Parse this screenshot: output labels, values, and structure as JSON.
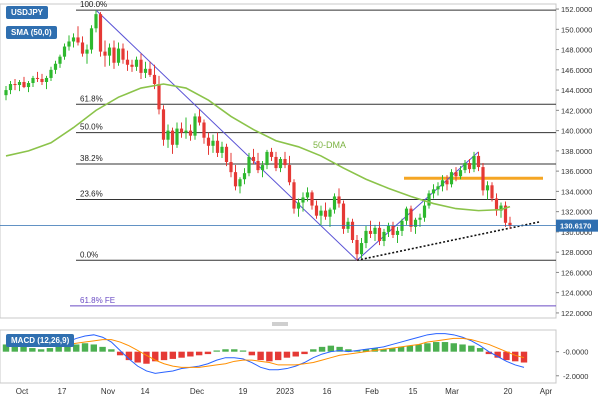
{
  "chart_data": {
    "type": "candlestick",
    "symbol": "USDJPY",
    "indicator_label": "SMA (50,0)",
    "macd_label": "MACD (12,26,9)",
    "current_price": 130.617,
    "current_price_label": "130.6170",
    "ylim": [
      121.5,
      152.5
    ],
    "y_ticks": [
      122,
      124,
      126,
      128,
      130,
      132,
      134,
      136,
      138,
      140,
      142,
      144,
      146,
      148,
      150,
      152
    ],
    "y_tick_labels": [
      "122.0000",
      "124.0000",
      "126.0000",
      "128.0000",
      "130.0000",
      "132.0000",
      "134.0000",
      "136.0000",
      "138.0000",
      "140.0000",
      "142.0000",
      "144.0000",
      "146.0000",
      "148.0000",
      "150.0000",
      "152.0000"
    ],
    "x_ticks": [
      "Oct",
      "17",
      "Nov",
      "14",
      "Dec",
      "19",
      "2023",
      "16",
      "Feb",
      "15",
      "Mar",
      "20",
      "Apr"
    ],
    "fib_levels": [
      {
        "label": "100.0%",
        "value": 151.9
      },
      {
        "label": "61.8%",
        "value": 142.6
      },
      {
        "label": "50.0%",
        "value": 139.8
      },
      {
        "label": "38.2%",
        "value": 136.7
      },
      {
        "label": "23.6%",
        "value": 133.2
      },
      {
        "label": "0.0%",
        "value": 127.2
      },
      {
        "label": "61.8% FE",
        "value": 122.7
      }
    ],
    "sma_label": "50-DMA",
    "resistance_level": 135.3,
    "macd_ticks": [
      "-0.0000",
      "-2.0000"
    ],
    "candles": [
      [
        143.5,
        144.4,
        143.0,
        144.0
      ],
      [
        144.0,
        144.9,
        143.6,
        144.6
      ],
      [
        144.6,
        145.1,
        144.0,
        144.5
      ],
      [
        144.5,
        145.0,
        143.9,
        144.8
      ],
      [
        144.8,
        145.3,
        144.2,
        144.3
      ],
      [
        144.3,
        144.9,
        143.8,
        144.7
      ],
      [
        144.7,
        145.4,
        144.3,
        145.2
      ],
      [
        145.2,
        145.8,
        144.8,
        145.1
      ],
      [
        145.1,
        145.6,
        144.5,
        144.8
      ],
      [
        144.8,
        145.4,
        144.1,
        145.2
      ],
      [
        145.2,
        146.3,
        144.9,
        146.0
      ],
      [
        146.0,
        146.9,
        145.6,
        146.6
      ],
      [
        146.6,
        147.5,
        146.2,
        147.3
      ],
      [
        147.3,
        148.6,
        147.0,
        148.3
      ],
      [
        148.3,
        149.4,
        147.9,
        148.8
      ],
      [
        148.8,
        149.6,
        148.2,
        149.2
      ],
      [
        149.2,
        150.3,
        148.4,
        148.7
      ],
      [
        148.7,
        149.3,
        147.3,
        147.6
      ],
      [
        147.6,
        148.5,
        146.6,
        148.0
      ],
      [
        148.0,
        150.4,
        147.6,
        150.1
      ],
      [
        150.1,
        151.9,
        149.7,
        151.5
      ],
      [
        151.5,
        151.7,
        147.3,
        147.8
      ],
      [
        147.8,
        148.9,
        146.3,
        147.4
      ],
      [
        147.4,
        148.6,
        146.4,
        148.2
      ],
      [
        148.2,
        148.9,
        146.1,
        146.7
      ],
      [
        146.7,
        148.7,
        146.4,
        148.1
      ],
      [
        148.1,
        148.6,
        146.6,
        147.0
      ],
      [
        147.0,
        147.9,
        145.9,
        146.5
      ],
      [
        146.5,
        147.0,
        145.8,
        146.3
      ],
      [
        146.3,
        147.3,
        145.9,
        147.0
      ],
      [
        147.0,
        147.6,
        145.1,
        145.7
      ],
      [
        145.7,
        146.8,
        145.2,
        146.1
      ],
      [
        146.1,
        146.8,
        145.3,
        145.5
      ],
      [
        145.5,
        146.5,
        144.1,
        144.6
      ],
      [
        144.6,
        145.4,
        141.6,
        142.1
      ],
      [
        142.1,
        142.5,
        138.5,
        139.1
      ],
      [
        139.1,
        140.6,
        138.3,
        140.0
      ],
      [
        140.0,
        140.3,
        137.7,
        138.6
      ],
      [
        138.6,
        140.8,
        138.3,
        140.2
      ],
      [
        140.2,
        140.8,
        139.3,
        139.8
      ],
      [
        139.8,
        141.3,
        139.2,
        140.0
      ],
      [
        140.0,
        140.6,
        139.0,
        139.5
      ],
      [
        139.5,
        141.7,
        139.1,
        141.4
      ],
      [
        141.4,
        142.1,
        140.5,
        140.8
      ],
      [
        140.8,
        141.1,
        138.7,
        139.3
      ],
      [
        139.3,
        139.8,
        137.6,
        138.5
      ],
      [
        138.5,
        139.6,
        137.8,
        139.0
      ],
      [
        139.0,
        139.8,
        137.4,
        137.8
      ],
      [
        137.8,
        138.9,
        137.3,
        138.4
      ],
      [
        138.4,
        138.7,
        136.5,
        136.9
      ],
      [
        136.9,
        137.8,
        135.4,
        135.9
      ],
      [
        135.9,
        136.6,
        134.1,
        134.5
      ],
      [
        134.5,
        135.4,
        133.8,
        135.2
      ],
      [
        135.2,
        136.3,
        134.7,
        135.8
      ],
      [
        135.8,
        137.8,
        135.5,
        137.4
      ],
      [
        137.4,
        138.2,
        136.7,
        137.0
      ],
      [
        137.0,
        137.8,
        135.8,
        136.1
      ],
      [
        136.1,
        137.0,
        135.4,
        136.6
      ],
      [
        136.6,
        138.1,
        136.2,
        137.9
      ],
      [
        137.9,
        138.3,
        137.0,
        137.4
      ],
      [
        137.4,
        137.9,
        136.0,
        136.3
      ],
      [
        136.3,
        137.4,
        135.9,
        137.2
      ],
      [
        137.2,
        137.9,
        136.3,
        136.6
      ],
      [
        136.6,
        137.5,
        134.6,
        134.9
      ],
      [
        134.9,
        135.2,
        131.8,
        132.3
      ],
      [
        132.3,
        133.3,
        131.5,
        132.9
      ],
      [
        132.9,
        133.9,
        132.0,
        133.4
      ],
      [
        133.4,
        134.4,
        133.0,
        133.9
      ],
      [
        133.9,
        134.1,
        132.2,
        132.6
      ],
      [
        132.6,
        133.1,
        131.3,
        131.6
      ],
      [
        131.6,
        132.6,
        130.7,
        132.1
      ],
      [
        132.1,
        132.9,
        131.2,
        131.5
      ],
      [
        131.5,
        132.4,
        130.5,
        132.2
      ],
      [
        132.2,
        133.8,
        131.8,
        133.5
      ],
      [
        133.5,
        134.3,
        132.4,
        132.8
      ],
      [
        132.8,
        133.1,
        129.8,
        130.3
      ],
      [
        130.3,
        131.4,
        129.9,
        131.0
      ],
      [
        131.0,
        131.3,
        128.9,
        129.2
      ],
      [
        129.2,
        129.7,
        127.2,
        127.8
      ],
      [
        127.8,
        129.4,
        127.4,
        128.9
      ],
      [
        128.9,
        130.6,
        128.4,
        130.1
      ],
      [
        130.1,
        131.1,
        129.4,
        129.8
      ],
      [
        129.8,
        130.7,
        129.1,
        130.4
      ],
      [
        130.4,
        131.0,
        128.7,
        129.1
      ],
      [
        129.1,
        130.3,
        128.6,
        130.0
      ],
      [
        130.0,
        130.9,
        129.5,
        130.6
      ],
      [
        130.6,
        131.0,
        129.4,
        129.7
      ],
      [
        129.7,
        130.5,
        128.9,
        130.1
      ],
      [
        130.1,
        131.3,
        129.6,
        131.1
      ],
      [
        131.1,
        132.5,
        130.7,
        132.3
      ],
      [
        132.3,
        132.6,
        130.0,
        130.5
      ],
      [
        130.5,
        131.4,
        129.8,
        131.2
      ],
      [
        131.2,
        131.8,
        130.5,
        131.4
      ],
      [
        131.4,
        133.0,
        131.0,
        132.6
      ],
      [
        132.6,
        134.1,
        132.3,
        133.8
      ],
      [
        133.8,
        134.7,
        133.3,
        134.2
      ],
      [
        134.2,
        134.9,
        133.6,
        134.5
      ],
      [
        134.5,
        135.6,
        134.0,
        135.1
      ],
      [
        135.1,
        135.6,
        134.1,
        134.7
      ],
      [
        134.7,
        136.2,
        134.4,
        135.9
      ],
      [
        135.9,
        136.4,
        135.0,
        135.5
      ],
      [
        135.5,
        136.5,
        135.2,
        136.1
      ],
      [
        136.1,
        137.1,
        135.8,
        136.8
      ],
      [
        136.8,
        137.2,
        135.8,
        136.2
      ],
      [
        136.2,
        137.9,
        135.9,
        137.5
      ],
      [
        137.5,
        137.9,
        136.0,
        136.4
      ],
      [
        136.4,
        136.8,
        133.6,
        134.1
      ],
      [
        134.1,
        135.0,
        133.2,
        134.6
      ],
      [
        134.6,
        134.9,
        133.0,
        133.3
      ],
      [
        133.3,
        133.8,
        131.6,
        132.1
      ],
      [
        132.1,
        132.9,
        131.4,
        132.6
      ],
      [
        132.6,
        133.0,
        130.5,
        130.9
      ],
      [
        130.9,
        131.5,
        130.3,
        130.6
      ]
    ],
    "sma_50": [
      [
        0,
        137.5
      ],
      [
        5,
        138.0
      ],
      [
        10,
        138.8
      ],
      [
        15,
        140.3
      ],
      [
        20,
        142.0
      ],
      [
        25,
        143.3
      ],
      [
        30,
        144.2
      ],
      [
        35,
        144.6
      ],
      [
        40,
        144.2
      ],
      [
        45,
        143.0
      ],
      [
        50,
        141.4
      ],
      [
        55,
        140.1
      ],
      [
        60,
        139.0
      ],
      [
        65,
        138.4
      ],
      [
        70,
        137.5
      ],
      [
        75,
        136.3
      ],
      [
        80,
        135.2
      ],
      [
        85,
        134.3
      ],
      [
        90,
        133.5
      ],
      [
        95,
        132.8
      ],
      [
        100,
        132.3
      ],
      [
        105,
        132.1
      ],
      [
        110,
        132.2
      ],
      [
        112,
        132.5
      ]
    ],
    "macd_hist": [
      0.6,
      0.7,
      0.5,
      0.3,
      0.2,
      0.3,
      0.5,
      0.4,
      0.6,
      0.7,
      0.6,
      0.4,
      0.2,
      -0.3,
      -0.7,
      -0.9,
      -1.0,
      -0.8,
      -0.7,
      -0.6,
      -0.5,
      -0.4,
      -0.3,
      -0.2,
      0.1,
      0.2,
      0.2,
      0.1,
      -0.3,
      -0.7,
      -0.8,
      -0.7,
      -0.5,
      -0.4,
      -0.2,
      0.2,
      0.4,
      0.5,
      0.4,
      0.2,
      0.1,
      0.2,
      0.3,
      0.2,
      0.3,
      0.4,
      0.5,
      0.6,
      0.7,
      0.8,
      0.8,
      0.7,
      0.6,
      0.5,
      0.3,
      -0.2,
      -0.5,
      -0.7,
      -0.8,
      -0.9
    ],
    "macd_line": [
      1.0,
      1.1,
      1.0,
      0.8,
      0.6,
      0.5,
      0.6,
      0.8,
      1.1,
      1.3,
      1.4,
      1.2,
      0.8,
      0.1,
      -0.6,
      -1.2,
      -1.6,
      -1.8,
      -1.7,
      -1.6,
      -1.4,
      -1.3,
      -1.2,
      -1.0,
      -0.7,
      -0.5,
      -0.5,
      -0.6,
      -0.9,
      -1.3,
      -1.5,
      -1.5,
      -1.4,
      -1.2,
      -0.9,
      -0.5,
      -0.2,
      0.0,
      0.1,
      0.0,
      0.1,
      0.2,
      0.3,
      0.4,
      0.6,
      0.8,
      1.0,
      1.2,
      1.4,
      1.5,
      1.5,
      1.4,
      1.2,
      0.9,
      0.5,
      0.0,
      -0.4,
      -0.8,
      -1.1,
      -1.3
    ],
    "macd_signal": [
      0.5,
      0.7,
      0.8,
      0.8,
      0.8,
      0.7,
      0.6,
      0.6,
      0.7,
      0.8,
      0.9,
      1.0,
      1.0,
      0.8,
      0.5,
      0.1,
      -0.3,
      -0.7,
      -1.0,
      -1.2,
      -1.3,
      -1.3,
      -1.3,
      -1.2,
      -1.1,
      -1.0,
      -0.8,
      -0.7,
      -0.7,
      -0.8,
      -0.9,
      -1.1,
      -1.1,
      -1.1,
      -1.0,
      -0.9,
      -0.7,
      -0.5,
      -0.3,
      -0.2,
      -0.1,
      0.0,
      0.1,
      0.2,
      0.3,
      0.4,
      0.5,
      0.6,
      0.8,
      0.9,
      1.0,
      1.1,
      1.1,
      1.0,
      0.8,
      0.6,
      0.3,
      0.0,
      -0.3,
      -0.5
    ]
  }
}
